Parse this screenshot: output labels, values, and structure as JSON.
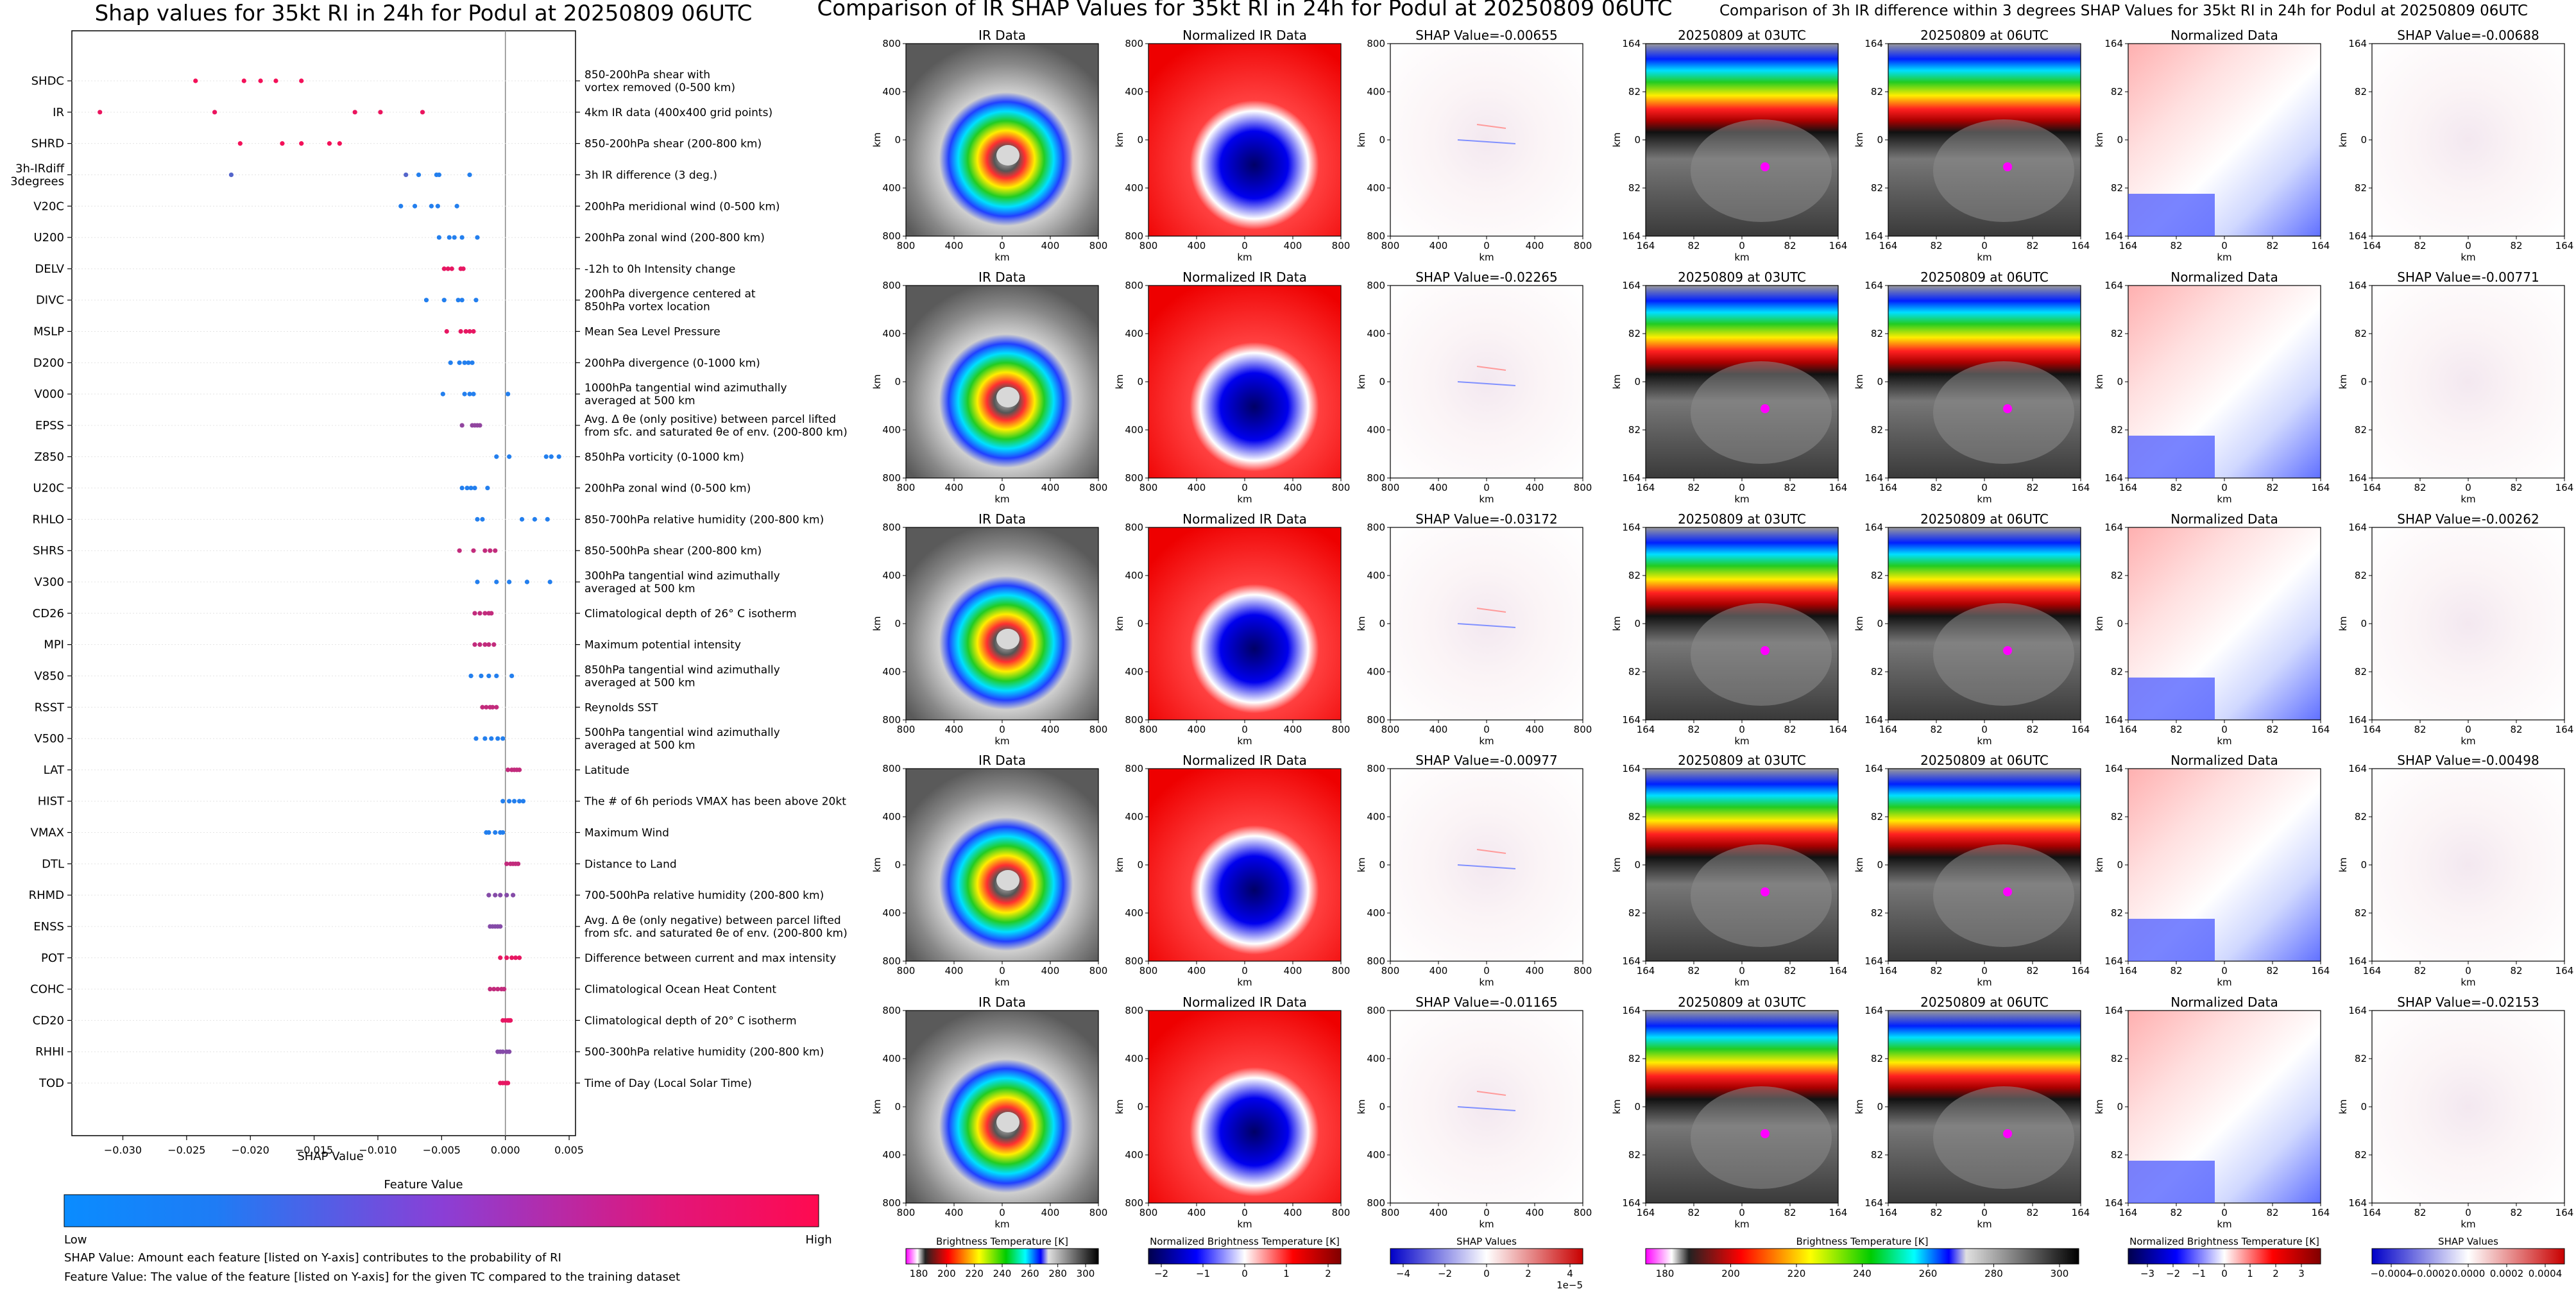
{
  "beeswarm": {
    "title": "Shap values for 35kt RI in 24h for Podul at 20250809 06UTC",
    "xlabel": "SHAP Value",
    "xticks": [
      "−0.030",
      "−0.025",
      "−0.020",
      "−0.015",
      "−0.010",
      "−0.005",
      "0.000",
      "0.005"
    ],
    "colorbar_title": "Feature Value",
    "colorbar_low": "Low",
    "colorbar_high": "High",
    "colors": {
      "low": "#1e88ff",
      "high": "#ff0a5a"
    },
    "note1": "SHAP Value: Amount each feature [listed on Y-axis] contributes to the probability of RI",
    "note2": "Feature Value: The value of the feature [listed on Y-axis] for the given TC compared to the training dataset"
  },
  "chart_data": [
    {
      "type": "scatter",
      "title": "Shap values for 35kt RI in 24h for Podul at 20250809 06UTC",
      "xlabel": "SHAP Value",
      "xlim": [
        -0.034,
        0.0055
      ],
      "features": [
        {
          "name": "SHDC",
          "desc": [
            "850-200hPa shear with",
            "vortex removed (0-500 km)"
          ],
          "values": [
            -0.0243,
            -0.0205,
            -0.0192,
            -0.018,
            -0.016
          ],
          "cvals": [
            0.95,
            0.95,
            0.95,
            0.95,
            0.95
          ]
        },
        {
          "name": "IR",
          "desc": [
            "4km IR data (400x400 grid points)"
          ],
          "values": [
            -0.0318,
            -0.0228,
            -0.0118,
            -0.0098,
            -0.0065
          ],
          "cvals": [
            0.92,
            0.92,
            0.92,
            0.92,
            0.92
          ]
        },
        {
          "name": "SHRD",
          "desc": [
            "850-200hPa shear (200-800 km)"
          ],
          "values": [
            -0.0208,
            -0.0175,
            -0.016,
            -0.0138,
            -0.013
          ],
          "cvals": [
            0.95,
            0.95,
            0.95,
            0.95,
            0.95
          ]
        },
        {
          "name": "3h-IRdiff",
          "name2": "3degrees",
          "desc": [
            "3h IR difference (3 deg.)"
          ],
          "values": [
            -0.0215,
            -0.0078,
            -0.0068,
            -0.0054,
            -0.0052,
            -0.0028
          ],
          "cvals": [
            0.3,
            0.3,
            0.1,
            0.1,
            0.1,
            0.1
          ]
        },
        {
          "name": "V20C",
          "desc": [
            "200hPa meridional wind (0-500 km)"
          ],
          "values": [
            -0.0082,
            -0.0071,
            -0.0058,
            -0.0053,
            -0.0038
          ],
          "cvals": [
            0.1,
            0.1,
            0.1,
            0.1,
            0.1
          ]
        },
        {
          "name": "U200",
          "desc": [
            "200hPa zonal wind (200-800 km)"
          ],
          "values": [
            -0.0052,
            -0.0044,
            -0.004,
            -0.0034,
            -0.0022
          ],
          "cvals": [
            0.1,
            0.1,
            0.1,
            0.1,
            0.1
          ]
        },
        {
          "name": "DELV",
          "desc": [
            "-12h to 0h Intensity change"
          ],
          "values": [
            -0.0048,
            -0.0045,
            -0.0042,
            -0.0035,
            -0.0033
          ],
          "cvals": [
            0.9,
            0.9,
            0.9,
            0.9,
            0.9
          ]
        },
        {
          "name": "DIVC",
          "desc": [
            "200hPa divergence centered at",
            "850hPa vortex location"
          ],
          "values": [
            -0.0062,
            -0.0048,
            -0.0037,
            -0.0034,
            -0.0023
          ],
          "cvals": [
            0.1,
            0.1,
            0.1,
            0.1,
            0.1
          ]
        },
        {
          "name": "MSLP",
          "desc": [
            "Mean Sea Level Pressure"
          ],
          "values": [
            -0.0046,
            -0.0035,
            -0.0031,
            -0.0028,
            -0.0025
          ],
          "cvals": [
            0.9,
            0.9,
            0.9,
            0.9,
            0.9
          ]
        },
        {
          "name": "D200",
          "desc": [
            "200hPa divergence (0-1000 km)"
          ],
          "values": [
            -0.0043,
            -0.0036,
            -0.0032,
            -0.0029,
            -0.0026
          ],
          "cvals": [
            0.1,
            0.1,
            0.1,
            0.1,
            0.1
          ]
        },
        {
          "name": "V000",
          "desc": [
            "1000hPa tangential wind azimuthally",
            "averaged at 500 km"
          ],
          "values": [
            -0.0049,
            -0.0032,
            -0.0028,
            -0.0025,
            0.0002
          ],
          "cvals": [
            0.1,
            0.1,
            0.1,
            0.1,
            0.1
          ]
        },
        {
          "name": "EPSS",
          "desc": [
            "Avg. Δ θe (only positive) between parcel lifted",
            "from sfc. and saturated θe of env. (200-800 km)"
          ],
          "values": [
            -0.0034,
            -0.0026,
            -0.0024,
            -0.0022,
            -0.002
          ],
          "cvals": [
            0.55,
            0.55,
            0.55,
            0.55,
            0.55
          ]
        },
        {
          "name": "Z850",
          "desc": [
            "850hPa vorticity (0-1000 km)"
          ],
          "values": [
            -0.0007,
            0.0003,
            0.0032,
            0.0036,
            0.0042
          ],
          "cvals": [
            0.1,
            0.1,
            0.1,
            0.1,
            0.1
          ]
        },
        {
          "name": "U20C",
          "desc": [
            "200hPa zonal wind (0-500 km)"
          ],
          "values": [
            -0.0034,
            -0.003,
            -0.0027,
            -0.0024,
            -0.0014
          ],
          "cvals": [
            0.1,
            0.1,
            0.1,
            0.1,
            0.1
          ]
        },
        {
          "name": "RHLO",
          "desc": [
            "850-700hPa relative humidity (200-800 km)"
          ],
          "values": [
            -0.0022,
            -0.0018,
            0.0013,
            0.0023,
            0.0033
          ],
          "cvals": [
            0.1,
            0.1,
            0.1,
            0.1,
            0.1
          ]
        },
        {
          "name": "SHRS",
          "desc": [
            "850-500hPa shear (200-800 km)"
          ],
          "values": [
            -0.0036,
            -0.0025,
            -0.0016,
            -0.0012,
            -0.0008
          ],
          "cvals": [
            0.75,
            0.75,
            0.75,
            0.75,
            0.75
          ]
        },
        {
          "name": "V300",
          "desc": [
            "300hPa tangential wind azimuthally",
            "averaged at 500 km"
          ],
          "values": [
            -0.0022,
            -0.0007,
            0.0003,
            0.0017,
            0.0035
          ],
          "cvals": [
            0.1,
            0.1,
            0.1,
            0.1,
            0.1
          ]
        },
        {
          "name": "CD26",
          "desc": [
            "Climatological depth of 26° C isotherm"
          ],
          "values": [
            -0.0024,
            -0.002,
            -0.0016,
            -0.0013,
            -0.0011
          ],
          "cvals": [
            0.75,
            0.75,
            0.75,
            0.75,
            0.75
          ]
        },
        {
          "name": "MPI",
          "desc": [
            "Maximum potential intensity"
          ],
          "values": [
            -0.0024,
            -0.002,
            -0.0016,
            -0.0013,
            -0.0009
          ],
          "cvals": [
            0.75,
            0.75,
            0.75,
            0.75,
            0.75
          ]
        },
        {
          "name": "V850",
          "desc": [
            "850hPa tangential wind azimuthally",
            "averaged at 500 km"
          ],
          "values": [
            -0.0027,
            -0.0019,
            -0.0013,
            -0.0007,
            0.0005
          ],
          "cvals": [
            0.1,
            0.1,
            0.1,
            0.1,
            0.1
          ]
        },
        {
          "name": "RSST",
          "desc": [
            "Reynolds SST"
          ],
          "values": [
            -0.0018,
            -0.0015,
            -0.0012,
            -0.001,
            -0.0007
          ],
          "cvals": [
            0.75,
            0.75,
            0.75,
            0.75,
            0.75
          ]
        },
        {
          "name": "V500",
          "desc": [
            "500hPa tangential wind azimuthally",
            "averaged at 500 km"
          ],
          "values": [
            -0.0023,
            -0.0016,
            -0.0011,
            -0.0006,
            -0.0002
          ],
          "cvals": [
            0.1,
            0.1,
            0.1,
            0.1,
            0.1
          ]
        },
        {
          "name": "LAT",
          "desc": [
            "Latitude"
          ],
          "values": [
            0.0002,
            0.0005,
            0.0007,
            0.0009,
            0.0011
          ],
          "cvals": [
            0.75,
            0.75,
            0.75,
            0.75,
            0.75
          ]
        },
        {
          "name": "HIST",
          "desc": [
            "The # of 6h periods VMAX has been above 20kt"
          ],
          "values": [
            -0.0002,
            0.0003,
            0.0007,
            0.0011,
            0.0014
          ],
          "cvals": [
            0.1,
            0.1,
            0.1,
            0.1,
            0.1
          ]
        },
        {
          "name": "VMAX",
          "desc": [
            "Maximum Wind"
          ],
          "values": [
            -0.0015,
            -0.0013,
            -0.0008,
            -0.0004,
            -0.0002
          ],
          "cvals": [
            0.1,
            0.1,
            0.1,
            0.1,
            0.1
          ]
        },
        {
          "name": "DTL",
          "desc": [
            "Distance to Land"
          ],
          "values": [
            0.0001,
            0.0004,
            0.0006,
            0.0008,
            0.001
          ],
          "cvals": [
            0.75,
            0.75,
            0.75,
            0.75,
            0.75
          ]
        },
        {
          "name": "RHMD",
          "desc": [
            "700-500hPa relative humidity (200-800 km)"
          ],
          "values": [
            -0.0013,
            -0.0008,
            -0.0004,
            0.0001,
            0.0006
          ],
          "cvals": [
            0.5,
            0.5,
            0.5,
            0.5,
            0.5
          ]
        },
        {
          "name": "ENSS",
          "desc": [
            "Avg. Δ θe (only negative) between parcel lifted",
            "from sfc. and saturated θe of env. (200-800 km)"
          ],
          "values": [
            -0.0012,
            -0.001,
            -0.0008,
            -0.0006,
            -0.0004
          ],
          "cvals": [
            0.5,
            0.5,
            0.5,
            0.5,
            0.5
          ]
        },
        {
          "name": "POT",
          "desc": [
            "Difference between current and max intensity"
          ],
          "values": [
            -0.0004,
            0.0001,
            0.0005,
            0.0008,
            0.0011
          ],
          "cvals": [
            0.9,
            0.9,
            0.9,
            0.9,
            0.9
          ]
        },
        {
          "name": "COHC",
          "desc": [
            "Climatological Ocean Heat Content"
          ],
          "values": [
            -0.0012,
            -0.0009,
            -0.0006,
            -0.0003,
            -0.0001
          ],
          "cvals": [
            0.75,
            0.75,
            0.75,
            0.75,
            0.75
          ]
        },
        {
          "name": "CD20",
          "desc": [
            "Climatological depth of 20° C isotherm"
          ],
          "values": [
            -0.0002,
            0.0,
            0.0002,
            0.0003,
            0.0004
          ],
          "cvals": [
            0.9,
            0.9,
            0.9,
            0.9,
            0.9
          ]
        },
        {
          "name": "RHHI",
          "desc": [
            "500-300hPa relative humidity (200-800 km)"
          ],
          "values": [
            -0.0006,
            -0.0004,
            -0.0002,
            0.0001,
            0.0003
          ],
          "cvals": [
            0.5,
            0.5,
            0.5,
            0.5,
            0.5
          ]
        },
        {
          "name": "TOD",
          "desc": [
            "Time of Day (Local Solar Time)"
          ],
          "values": [
            -0.0004,
            -0.0002,
            0.0,
            0.0001,
            0.0002
          ],
          "cvals": [
            0.9,
            0.9,
            0.9,
            0.9,
            0.9
          ]
        }
      ]
    },
    {
      "type": "heatmap",
      "title": "Comparison of IR SHAP Values for 35kt RI in 24h for Podul at 20250809 06UTC",
      "columns": [
        "IR Data",
        "Normalized IR Data",
        "SHAP Value"
      ],
      "shap_values": [
        "-0.00655",
        "-0.02265",
        "-0.03172",
        "-0.00977",
        "-0.01165"
      ],
      "xlabel": "km",
      "ylabel": "km",
      "ticks": [
        "800",
        "400",
        "0",
        "400",
        "800"
      ],
      "colorbars": [
        {
          "label": "Brightness Temperature [K]",
          "ticks": [
            "180",
            "200",
            "220",
            "240",
            "260",
            "280",
            "300"
          ]
        },
        {
          "label": "Normalized Brightness Temperature [K]",
          "ticks": [
            "−2",
            "−1",
            "0",
            "1",
            "2"
          ]
        },
        {
          "label": "SHAP Values",
          "ticks": [
            "−4",
            "−2",
            "0",
            "2",
            "4"
          ],
          "offset": "1e−5"
        }
      ]
    },
    {
      "type": "heatmap",
      "title": "Comparison of 3h IR difference within 3 degrees SHAP Values for 35kt RI in 24h for Podul at 20250809 06UTC",
      "columns": [
        "20250809 at 03UTC",
        "20250809 at 06UTC",
        "Normalized Data",
        "SHAP Value"
      ],
      "shap_values": [
        "-0.00688",
        "-0.00771",
        "-0.00262",
        "-0.00498",
        "-0.02153"
      ],
      "xlabel": "km",
      "ylabel": "km",
      "ticks": [
        "164",
        "82",
        "0",
        "82",
        "164"
      ],
      "colorbars": [
        {
          "label": "Brightness Temperature [K]",
          "ticks": [
            "180",
            "200",
            "220",
            "240",
            "260",
            "280",
            "300"
          ]
        },
        {
          "label": "Normalized Brightness Temperature [K]",
          "ticks": [
            "−3",
            "−2",
            "−1",
            "0",
            "1",
            "2",
            "3"
          ]
        },
        {
          "label": "SHAP Values",
          "ticks": [
            "−0.0004",
            "−0.0002",
            "0.0000",
            "0.0002",
            "0.0004"
          ]
        }
      ]
    }
  ]
}
